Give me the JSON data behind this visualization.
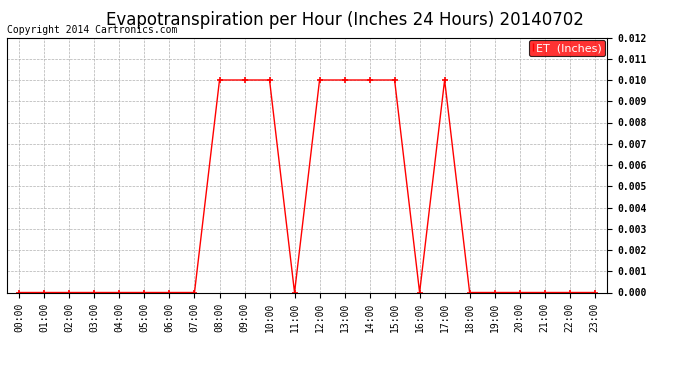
{
  "title": "Evapotranspiration per Hour (Inches 24 Hours) 20140702",
  "copyright": "Copyright 2014 Cartronics.com",
  "legend_label": "ET  (Inches)",
  "hours": [
    0,
    1,
    2,
    3,
    4,
    5,
    6,
    7,
    8,
    9,
    10,
    11,
    12,
    13,
    14,
    15,
    16,
    17,
    18,
    19,
    20,
    21,
    22,
    23
  ],
  "hour_labels": [
    "00:00",
    "01:00",
    "02:00",
    "03:00",
    "04:00",
    "05:00",
    "06:00",
    "07:00",
    "08:00",
    "09:00",
    "10:00",
    "11:00",
    "12:00",
    "13:00",
    "14:00",
    "15:00",
    "16:00",
    "17:00",
    "18:00",
    "19:00",
    "20:00",
    "21:00",
    "22:00",
    "23:00"
  ],
  "values": [
    0.0,
    0.0,
    0.0,
    0.0,
    0.0,
    0.0,
    0.0,
    0.0,
    0.01,
    0.01,
    0.01,
    0.0,
    0.01,
    0.01,
    0.01,
    0.01,
    0.0,
    0.01,
    0.0,
    0.0,
    0.0,
    0.0,
    0.0,
    0.0
  ],
  "line_color": "#ff0000",
  "marker": "+",
  "grid_color": "#b0b0b0",
  "ylim": [
    0.0,
    0.012
  ],
  "yticks": [
    0.0,
    0.001,
    0.002,
    0.003,
    0.004,
    0.005,
    0.006,
    0.007,
    0.008,
    0.009,
    0.01,
    0.011,
    0.012
  ],
  "bg_color": "#ffffff",
  "legend_bg": "#ff0000",
  "legend_text_color": "#ffffff",
  "title_fontsize": 12,
  "copyright_fontsize": 7,
  "tick_fontsize": 7,
  "legend_fontsize": 8
}
